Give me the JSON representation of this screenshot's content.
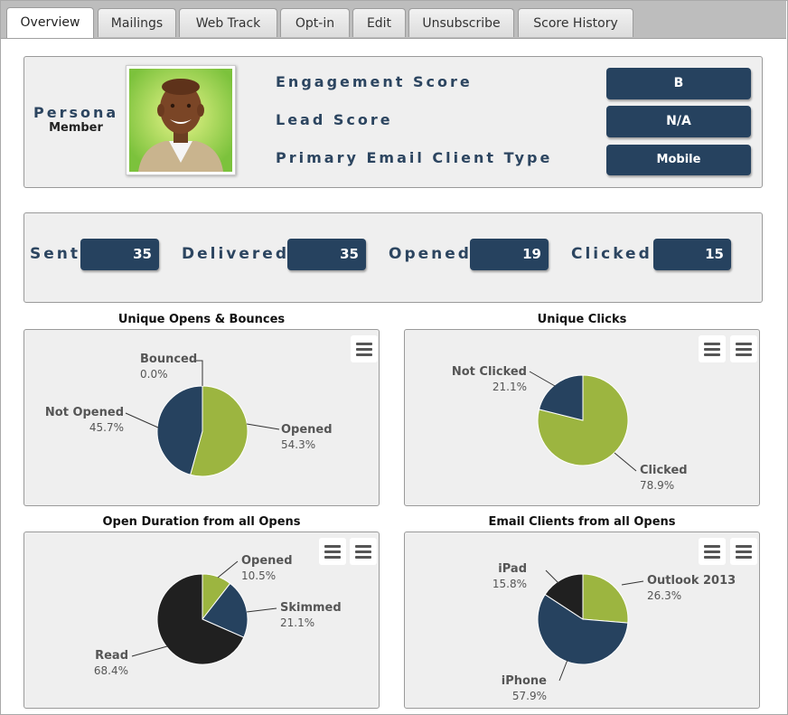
{
  "tabs": [
    {
      "label": "Overview",
      "active": true
    },
    {
      "label": "Mailings",
      "active": false
    },
    {
      "label": "Web Track",
      "active": false
    },
    {
      "label": "Opt-in",
      "active": false
    },
    {
      "label": "Edit",
      "active": false
    },
    {
      "label": "Unsubscribe",
      "active": false
    },
    {
      "label": "Score History",
      "active": false
    }
  ],
  "profile": {
    "persona_label": "Persona",
    "persona_value": "Member",
    "rows": [
      {
        "label": "Engagement Score",
        "value": "B"
      },
      {
        "label": "Lead Score",
        "value": "N/A"
      },
      {
        "label": "Primary Email Client Type",
        "value": "Mobile"
      }
    ]
  },
  "stats": [
    {
      "label": "Sent",
      "value": "35"
    },
    {
      "label": "Delivered",
      "value": "35"
    },
    {
      "label": "Opened",
      "value": "19"
    },
    {
      "label": "Clicked",
      "value": "15"
    }
  ],
  "colors": {
    "green": "#9cb540",
    "navy": "#26425f",
    "black": "#202020",
    "accent": "#2c4560"
  },
  "chart_data": [
    {
      "type": "pie",
      "title": "Unique Opens & Bounces",
      "slices": [
        {
          "name": "Opened",
          "value": 54.3,
          "label": "54.3%"
        },
        {
          "name": "Not Opened",
          "value": 45.7,
          "label": "45.7%"
        },
        {
          "name": "Bounced",
          "value": 0.0,
          "label": "0.0%"
        }
      ]
    },
    {
      "type": "pie",
      "title": "Unique Clicks",
      "slices": [
        {
          "name": "Clicked",
          "value": 78.9,
          "label": "78.9%"
        },
        {
          "name": "Not Clicked",
          "value": 21.1,
          "label": "21.1%"
        }
      ]
    },
    {
      "type": "pie",
      "title": "Open Duration from all Opens",
      "slices": [
        {
          "name": "Opened",
          "value": 10.5,
          "label": "10.5%"
        },
        {
          "name": "Skimmed",
          "value": 21.1,
          "label": "21.1%"
        },
        {
          "name": "Read",
          "value": 68.4,
          "label": "68.4%"
        }
      ]
    },
    {
      "type": "pie",
      "title": "Email Clients from all Opens",
      "slices": [
        {
          "name": "Outlook 2013",
          "value": 26.3,
          "label": "26.3%"
        },
        {
          "name": "iPhone",
          "value": 57.9,
          "label": "57.9%"
        },
        {
          "name": "iPad",
          "value": 15.8,
          "label": "15.8%"
        }
      ]
    }
  ]
}
